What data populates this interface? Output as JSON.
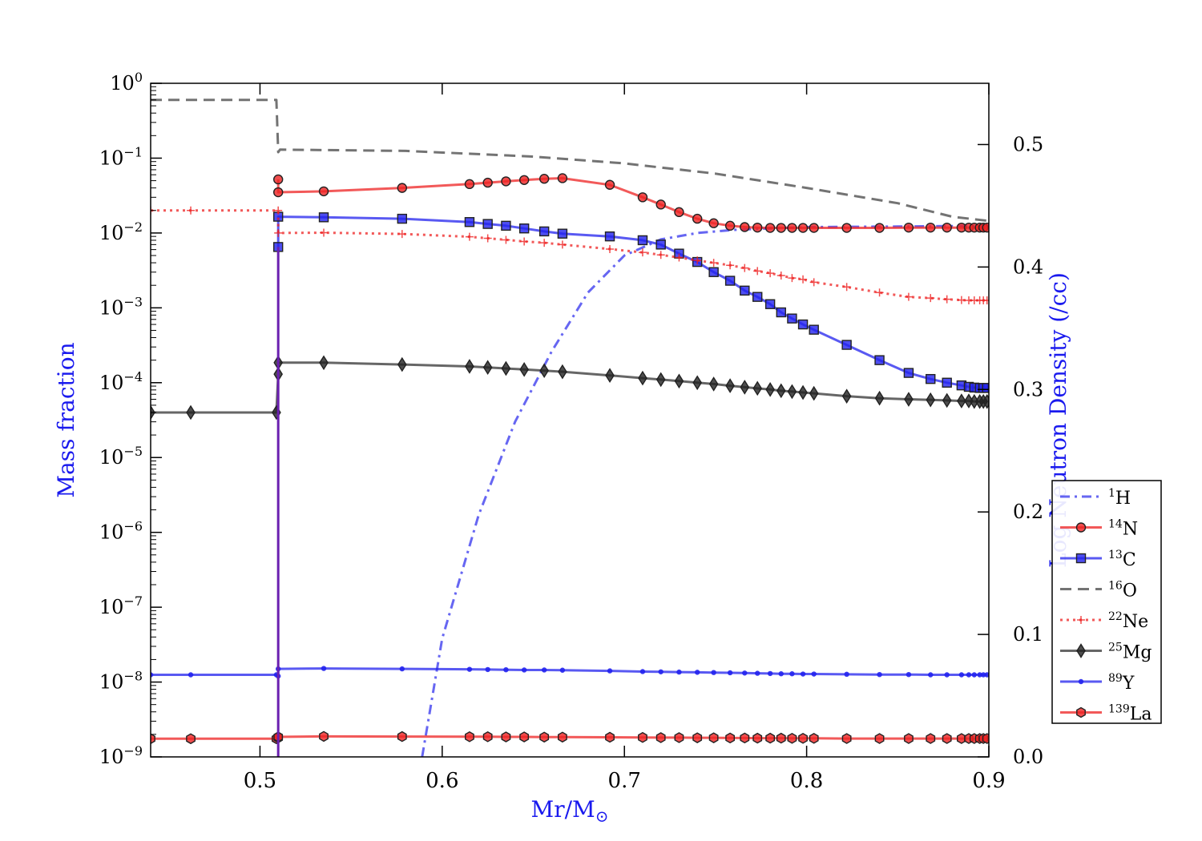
{
  "chart_data": {
    "type": "line",
    "xlabel": "Mr/M",
    "xlabel_symbol": "⊙",
    "ylabel": "Mass fraction",
    "y2label": "Log Neutron Density (/cc)",
    "xlim": [
      0.44,
      0.9
    ],
    "ylim_log10": [
      -9,
      0
    ],
    "y2lim": [
      0.0,
      0.55
    ],
    "xticks": [
      {
        "value": 0.5,
        "label": "0.5"
      },
      {
        "value": 0.6,
        "label": "0.6"
      },
      {
        "value": 0.7,
        "label": "0.7"
      },
      {
        "value": 0.8,
        "label": "0.8"
      },
      {
        "value": 0.9,
        "label": "0.9"
      }
    ],
    "yticks": [
      {
        "exp": 0,
        "base": "10",
        "sup": "0"
      },
      {
        "exp": -1,
        "base": "10",
        "sup": "−1"
      },
      {
        "exp": -2,
        "base": "10",
        "sup": "−2"
      },
      {
        "exp": -3,
        "base": "10",
        "sup": "−3"
      },
      {
        "exp": -4,
        "base": "10",
        "sup": "−4"
      },
      {
        "exp": -5,
        "base": "10",
        "sup": "−5"
      },
      {
        "exp": -6,
        "base": "10",
        "sup": "−6"
      },
      {
        "exp": -7,
        "base": "10",
        "sup": "−7"
      },
      {
        "exp": -8,
        "base": "10",
        "sup": "−8"
      },
      {
        "exp": -9,
        "base": "10",
        "sup": "−9"
      }
    ],
    "y2ticks": [
      {
        "value": 0.0,
        "label": "0.0"
      },
      {
        "value": 0.1,
        "label": "0.1"
      },
      {
        "value": 0.2,
        "label": "0.2"
      },
      {
        "value": 0.3,
        "label": "0.3"
      },
      {
        "value": 0.4,
        "label": "0.4"
      },
      {
        "value": 0.5,
        "label": "0.5"
      }
    ],
    "legend_position": "right-lower",
    "vertical_line": {
      "x": 0.51,
      "color": "#6a1fb0"
    },
    "series": [
      {
        "name": "1H",
        "mass": "1",
        "element": "H",
        "color": "#3333ee",
        "linestyle": "dashdot",
        "marker": "none",
        "x": [
          0.589,
          0.6,
          0.62,
          0.64,
          0.66,
          0.68,
          0.7,
          0.72,
          0.74,
          0.76,
          0.78,
          0.8,
          0.85,
          0.9
        ],
        "y": [
          1e-09,
          3.8e-08,
          1.7e-06,
          3e-05,
          0.00026,
          0.0016,
          0.005,
          0.0082,
          0.01,
          0.011,
          0.0115,
          0.012,
          0.0122,
          0.0125
        ]
      },
      {
        "name": "14N",
        "mass": "14",
        "element": "N",
        "color": "#ee2222",
        "linestyle": "solid",
        "marker": "circle",
        "x": [
          0.51,
          0.51,
          0.535,
          0.578,
          0.615,
          0.625,
          0.635,
          0.645,
          0.656,
          0.666,
          0.692,
          0.71,
          0.72,
          0.73,
          0.74,
          0.749,
          0.758,
          0.766,
          0.773,
          0.78,
          0.786,
          0.792,
          0.798,
          0.804,
          0.822,
          0.84,
          0.856,
          0.868,
          0.877,
          0.885,
          0.889,
          0.892,
          0.895,
          0.897,
          0.899
        ],
        "y": [
          0.052,
          0.035,
          0.036,
          0.04,
          0.045,
          0.047,
          0.049,
          0.051,
          0.053,
          0.054,
          0.044,
          0.03,
          0.024,
          0.019,
          0.0155,
          0.0135,
          0.0125,
          0.012,
          0.0118,
          0.0117,
          0.0117,
          0.0117,
          0.0117,
          0.0117,
          0.0117,
          0.0117,
          0.0118,
          0.0118,
          0.0118,
          0.0118,
          0.0118,
          0.0118,
          0.0118,
          0.0118,
          0.0118
        ]
      },
      {
        "name": "13C",
        "mass": "13",
        "element": "C",
        "color": "#2222ee",
        "linestyle": "solid",
        "marker": "square",
        "x": [
          0.51,
          0.51,
          0.535,
          0.578,
          0.615,
          0.625,
          0.635,
          0.645,
          0.656,
          0.666,
          0.692,
          0.71,
          0.72,
          0.73,
          0.74,
          0.749,
          0.758,
          0.766,
          0.773,
          0.78,
          0.786,
          0.792,
          0.798,
          0.804,
          0.822,
          0.84,
          0.856,
          0.868,
          0.877,
          0.885,
          0.889,
          0.892,
          0.895,
          0.897,
          0.899
        ],
        "y": [
          0.0065,
          0.0165,
          0.0162,
          0.0155,
          0.014,
          0.0132,
          0.0125,
          0.0115,
          0.0105,
          0.0098,
          0.009,
          0.008,
          0.007,
          0.0053,
          0.0041,
          0.003,
          0.0023,
          0.0017,
          0.0014,
          0.00112,
          0.00087,
          0.00072,
          0.0006,
          0.00051,
          0.00032,
          0.0002,
          0.000135,
          0.000112,
          0.0001,
          9.2e-05,
          8.8e-05,
          8.6e-05,
          8.5e-05,
          8.5e-05,
          8.5e-05
        ]
      },
      {
        "name": "16O",
        "mass": "16",
        "element": "O",
        "color": "#444444",
        "linestyle": "dashed",
        "marker": "none",
        "x": [
          0.44,
          0.509,
          0.51,
          0.511,
          0.58,
          0.65,
          0.7,
          0.75,
          0.8,
          0.85,
          0.88,
          0.9
        ],
        "y": [
          0.6,
          0.6,
          0.12,
          0.13,
          0.125,
          0.105,
          0.085,
          0.062,
          0.04,
          0.025,
          0.0165,
          0.0145
        ]
      },
      {
        "name": "22Ne",
        "mass": "22",
        "element": "Ne",
        "color": "#ee2222",
        "linestyle": "dotted",
        "marker": "plus",
        "x": [
          0.44,
          0.462,
          0.51,
          0.51,
          0.535,
          0.578,
          0.615,
          0.625,
          0.635,
          0.645,
          0.656,
          0.666,
          0.692,
          0.71,
          0.72,
          0.73,
          0.74,
          0.749,
          0.758,
          0.766,
          0.773,
          0.78,
          0.786,
          0.792,
          0.798,
          0.804,
          0.822,
          0.84,
          0.856,
          0.868,
          0.877,
          0.885,
          0.889,
          0.892,
          0.895,
          0.897,
          0.899
        ],
        "y": [
          0.02,
          0.02,
          0.02,
          0.01,
          0.0101,
          0.0097,
          0.0089,
          0.0085,
          0.0081,
          0.0077,
          0.0074,
          0.007,
          0.0061,
          0.0055,
          0.0051,
          0.0047,
          0.0043,
          0.004,
          0.0037,
          0.0034,
          0.0031,
          0.0029,
          0.0027,
          0.0025,
          0.0024,
          0.0022,
          0.0019,
          0.0016,
          0.0014,
          0.00135,
          0.0013,
          0.00127,
          0.00126,
          0.00126,
          0.00126,
          0.00126,
          0.00126
        ]
      },
      {
        "name": "25Mg",
        "mass": "25",
        "element": "Mg",
        "color": "#333333",
        "linestyle": "solid",
        "marker": "diamond",
        "x": [
          0.44,
          0.462,
          0.509,
          0.51,
          0.51,
          0.535,
          0.578,
          0.615,
          0.625,
          0.635,
          0.645,
          0.656,
          0.666,
          0.692,
          0.71,
          0.72,
          0.73,
          0.74,
          0.749,
          0.758,
          0.766,
          0.773,
          0.78,
          0.786,
          0.792,
          0.798,
          0.804,
          0.822,
          0.84,
          0.856,
          0.868,
          0.877,
          0.885,
          0.889,
          0.892,
          0.895,
          0.897,
          0.899
        ],
        "y": [
          4e-05,
          4e-05,
          4e-05,
          0.00013,
          0.000185,
          0.000185,
          0.000175,
          0.000165,
          0.00016,
          0.000155,
          0.00015,
          0.000145,
          0.00014,
          0.000125,
          0.000115,
          0.00011,
          0.000105,
          0.0001,
          9.6e-05,
          9.1e-05,
          8.7e-05,
          8.4e-05,
          8.1e-05,
          7.8e-05,
          7.6e-05,
          7.4e-05,
          7.2e-05,
          6.6e-05,
          6.2e-05,
          6e-05,
          5.9e-05,
          5.8e-05,
          5.7e-05,
          5.7e-05,
          5.6e-05,
          5.6e-05,
          5.6e-05,
          5.6e-05
        ]
      },
      {
        "name": "89Y",
        "mass": "89",
        "element": "Y",
        "color": "#2222ee",
        "linestyle": "solid",
        "marker": "point",
        "x": [
          0.44,
          0.462,
          0.509,
          0.51,
          0.51,
          0.535,
          0.578,
          0.615,
          0.625,
          0.635,
          0.645,
          0.656,
          0.666,
          0.692,
          0.71,
          0.72,
          0.73,
          0.74,
          0.749,
          0.758,
          0.766,
          0.773,
          0.78,
          0.786,
          0.792,
          0.798,
          0.804,
          0.822,
          0.84,
          0.856,
          0.868,
          0.877,
          0.885,
          0.889,
          0.892,
          0.895,
          0.897,
          0.899
        ],
        "y": [
          1.25e-08,
          1.25e-08,
          1.25e-08,
          1.2e-08,
          1.5e-08,
          1.52e-08,
          1.5e-08,
          1.48e-08,
          1.47e-08,
          1.46e-08,
          1.45e-08,
          1.45e-08,
          1.44e-08,
          1.41e-08,
          1.38e-08,
          1.37e-08,
          1.36e-08,
          1.35e-08,
          1.34e-08,
          1.33e-08,
          1.32e-08,
          1.31e-08,
          1.3e-08,
          1.29e-08,
          1.29e-08,
          1.28e-08,
          1.28e-08,
          1.27e-08,
          1.26e-08,
          1.26e-08,
          1.25e-08,
          1.25e-08,
          1.25e-08,
          1.25e-08,
          1.25e-08,
          1.25e-08,
          1.25e-08,
          1.25e-08
        ]
      },
      {
        "name": "139La",
        "mass": "139",
        "element": "La",
        "color": "#ee2222",
        "linestyle": "solid",
        "marker": "hexagon",
        "x": [
          0.44,
          0.462,
          0.509,
          0.51,
          0.51,
          0.535,
          0.578,
          0.615,
          0.625,
          0.635,
          0.645,
          0.656,
          0.666,
          0.692,
          0.71,
          0.72,
          0.73,
          0.74,
          0.749,
          0.758,
          0.766,
          0.773,
          0.78,
          0.786,
          0.792,
          0.798,
          0.804,
          0.822,
          0.84,
          0.856,
          0.868,
          0.877,
          0.885,
          0.889,
          0.892,
          0.895,
          0.897,
          0.899
        ],
        "y": [
          1.75e-09,
          1.75e-09,
          1.75e-09,
          1.8e-09,
          1.85e-09,
          1.88e-09,
          1.87e-09,
          1.86e-09,
          1.86e-09,
          1.85e-09,
          1.85e-09,
          1.84e-09,
          1.84e-09,
          1.83e-09,
          1.82e-09,
          1.81e-09,
          1.81e-09,
          1.8e-09,
          1.8e-09,
          1.79e-09,
          1.79e-09,
          1.78e-09,
          1.78e-09,
          1.78e-09,
          1.77e-09,
          1.77e-09,
          1.77e-09,
          1.76e-09,
          1.76e-09,
          1.76e-09,
          1.76e-09,
          1.76e-09,
          1.76e-09,
          1.76e-09,
          1.76e-09,
          1.76e-09,
          1.76e-09,
          1.76e-09
        ]
      }
    ]
  }
}
